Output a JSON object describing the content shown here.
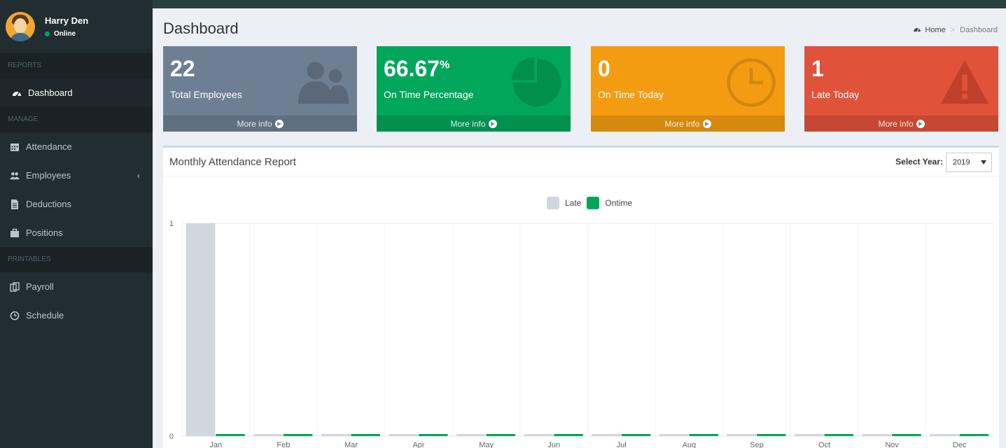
{
  "user": {
    "name": "Harry Den",
    "status": "Online"
  },
  "sidebar": {
    "sections": {
      "reports": "REPORTS",
      "manage": "MANAGE",
      "printables": "PRINTABLES"
    },
    "items": [
      {
        "label": "Dashboard",
        "icon": "dashboard-icon"
      },
      {
        "label": "Attendance",
        "icon": "calendar-icon"
      },
      {
        "label": "Employees",
        "icon": "users-icon"
      },
      {
        "label": "Deductions",
        "icon": "file-icon"
      },
      {
        "label": "Positions",
        "icon": "briefcase-icon"
      },
      {
        "label": "Payroll",
        "icon": "files-icon"
      },
      {
        "label": "Schedule",
        "icon": "clock-icon"
      }
    ]
  },
  "header": {
    "title": "Dashboard",
    "breadcrumb": {
      "home": "Home",
      "current": "Dashboard"
    }
  },
  "boxes": [
    {
      "value": "22",
      "suffix": "",
      "label": "Total Employees",
      "more": "More info",
      "icon": "users-icon",
      "color": "#6e7f93"
    },
    {
      "value": "66.67",
      "suffix": "%",
      "label": "On Time Percentage",
      "more": "More info",
      "icon": "pie-chart-icon",
      "color": "#00a65a"
    },
    {
      "value": "0",
      "suffix": "",
      "label": "On Time Today",
      "more": "More info",
      "icon": "clock-icon",
      "color": "#f39c12"
    },
    {
      "value": "1",
      "suffix": "",
      "label": "Late Today",
      "more": "More info",
      "icon": "warning-icon",
      "color": "#e0523a"
    }
  ],
  "report": {
    "title": "Monthly Attendance Report",
    "year_label": "Select Year:",
    "year_value": "2019"
  },
  "chart_data": {
    "type": "bar",
    "categories": [
      "Jan",
      "Feb",
      "Mar",
      "Apr",
      "May",
      "Jun",
      "Jul",
      "Aug",
      "Sep",
      "Oct",
      "Nov",
      "Dec"
    ],
    "series": [
      {
        "name": "Late",
        "color": "#d2d6de",
        "values": [
          1,
          0,
          0,
          0,
          0,
          0,
          0,
          0,
          0,
          0,
          0,
          0
        ]
      },
      {
        "name": "Ontime",
        "color": "#00a65a",
        "values": [
          0,
          0,
          0,
          0,
          0,
          0,
          0,
          0,
          0,
          0,
          0,
          0
        ]
      }
    ],
    "ylim": [
      0,
      1
    ],
    "yticks": [
      "0",
      "1"
    ],
    "legend": "top-center",
    "grid": true
  }
}
